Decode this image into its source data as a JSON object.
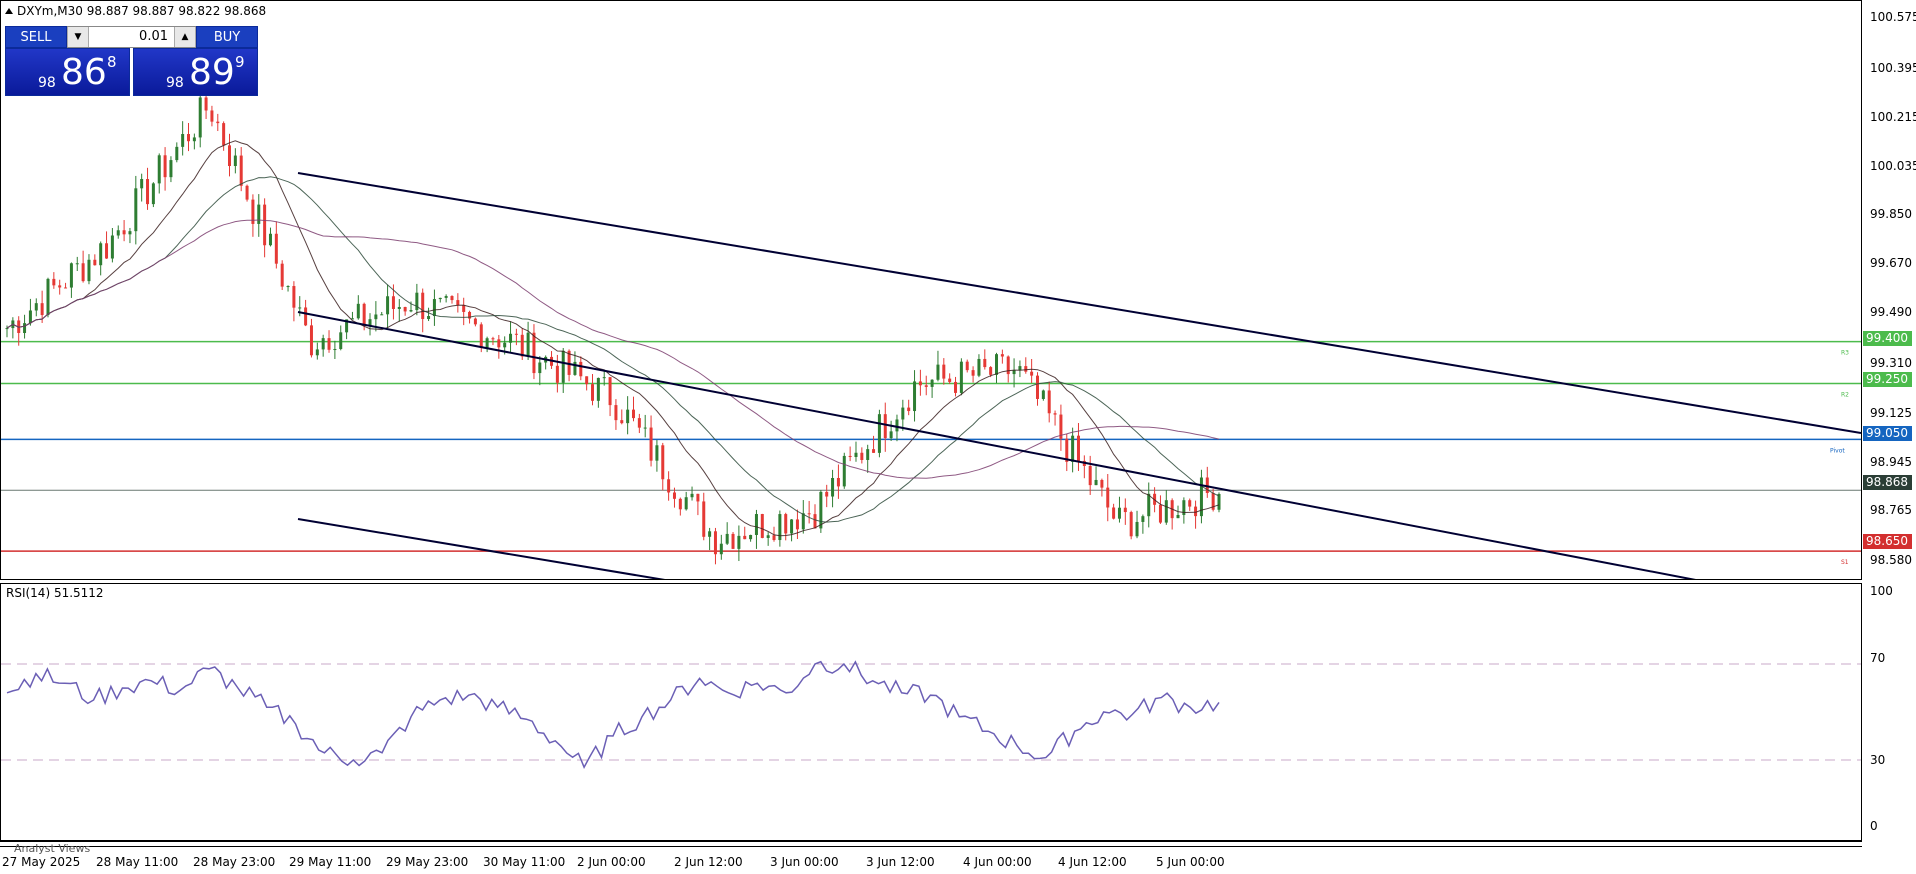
{
  "chart": {
    "title": "DXYm,M30  98.887 98.887 98.822 98.868",
    "rsi_title": "RSI(14) 51.5112",
    "analyst_tab": "Analyst Views"
  },
  "trade_panel": {
    "sell_label": "SELL",
    "buy_label": "BUY",
    "lot": "0.01",
    "bid_small": "98",
    "bid_big": "86",
    "bid_sup": "8",
    "ask_small": "98",
    "ask_big": "89",
    "ask_sup": "9",
    "button_color": "#1a3fbf"
  },
  "price_axis": [
    "100.575",
    "100.395",
    "100.215",
    "100.035",
    "99.850",
    "99.670",
    "99.490",
    "99.310",
    "99.125",
    "98.945",
    "98.765",
    "98.580"
  ],
  "levels": [
    {
      "price": "99.400",
      "label": "R3",
      "color": "#4cbb4c"
    },
    {
      "price": "99.250",
      "label": "R2",
      "color": "#4cbb4c"
    },
    {
      "price": "99.050",
      "label": "Pivot",
      "color": "#1565c0"
    },
    {
      "price": "98.868",
      "label": "",
      "color": "#2b3e36"
    },
    {
      "price": "98.650",
      "label": "S1",
      "color": "#d32f2f"
    }
  ],
  "rsi_axis": [
    "100",
    "70",
    "30",
    "0"
  ],
  "time_axis": [
    "27 May 2025",
    "28 May 11:00",
    "28 May 23:00",
    "29 May 11:00",
    "29 May 23:00",
    "30 May 11:00",
    "2 Jun 00:00",
    "2 Jun 12:00",
    "3 Jun 00:00",
    "3 Jun 12:00",
    "4 Jun 00:00",
    "4 Jun 12:00",
    "5 Jun 00:00"
  ],
  "colors": {
    "bull": "#2e7d32",
    "bear": "#e53935",
    "ma_fast": "#3a1f1f",
    "ma_mid": "#2d4a3a",
    "ma_slow": "#7b3d6e",
    "rsi": "#6b5fb5",
    "channel": "#000033"
  },
  "chart_data": {
    "type": "line",
    "title": "DXYm,M30",
    "x": [
      "27 May 2025",
      "28 May 11:00",
      "28 May 23:00",
      "29 May 11:00",
      "29 May 23:00",
      "30 May 11:00",
      "2 Jun 00:00",
      "2 Jun 12:00",
      "3 Jun 00:00",
      "3 Jun 12:00",
      "4 Jun 00:00",
      "4 Jun 12:00",
      "5 Jun 00:00"
    ],
    "series": [
      {
        "name": "",
        "values": [
          99.45,
          99.75,
          100.25,
          99.4,
          99.55,
          99.4,
          99.2,
          98.7,
          98.8,
          99.25,
          99.3,
          98.75,
          98.87
        ]
      }
    ],
    "ylim": [
      98.55,
      100.62
    ],
    "rsi": {
      "name": "RSI(14)",
      "last": 51.5112,
      "levels": [
        70,
        30
      ],
      "ylim": [
        0,
        100
      ],
      "values": [
        58,
        66,
        62,
        55,
        60,
        63,
        59,
        68,
        60,
        52,
        45,
        33,
        30,
        33,
        48,
        55,
        57,
        52,
        47,
        38,
        27,
        40,
        48,
        55,
        64,
        58,
        62,
        58,
        70,
        70,
        63,
        58,
        57,
        48,
        42,
        36,
        31,
        42,
        50,
        49,
        56,
        52,
        54
      ]
    }
  }
}
